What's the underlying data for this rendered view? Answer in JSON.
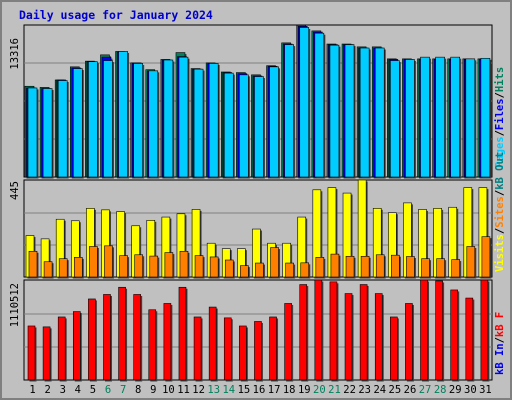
{
  "title": "Daily usage for January 2024",
  "panels": {
    "top": {
      "ymax_label": "13316",
      "legend": [
        {
          "text": "Pages",
          "color": "#00ccff"
        },
        {
          "text": "/",
          "color": "#000000"
        },
        {
          "text": "Files",
          "color": "#0000ee"
        },
        {
          "text": "/",
          "color": "#000000"
        },
        {
          "text": "Hits",
          "color": "#00805c"
        }
      ]
    },
    "middle": {
      "ymax_label": "445",
      "legend": [
        {
          "text": "Visits",
          "color": "#ffff00"
        },
        {
          "text": "/",
          "color": "#000000"
        },
        {
          "text": "Sites",
          "color": "#ff8000"
        },
        {
          "text": "/",
          "color": "#000000"
        },
        {
          "text": "kB Out",
          "color": "#008080"
        }
      ]
    },
    "bottom": {
      "ymax_label": "1110512",
      "legend": [
        {
          "text": "kB In",
          "color": "#0000ee"
        },
        {
          "text": "/",
          "color": "#000000"
        },
        {
          "text": "kB F",
          "color": "#ff0000"
        }
      ]
    }
  },
  "colors": {
    "hits": "#00805c",
    "files": "#0000ee",
    "pages": "#00ccff",
    "visits": "#ffff00",
    "sites": "#ff8000",
    "kbf": "#ff0000",
    "weekday_label": "#000000",
    "weekend_label": "#00805c"
  },
  "chart_data": {
    "type": "bar",
    "title": "Daily usage for January 2024",
    "categories": [
      "1",
      "2",
      "3",
      "4",
      "5",
      "6",
      "7",
      "8",
      "9",
      "10",
      "11",
      "12",
      "13",
      "14",
      "15",
      "16",
      "17",
      "18",
      "19",
      "20",
      "21",
      "22",
      "23",
      "24",
      "25",
      "26",
      "27",
      "28",
      "29",
      "30",
      "31"
    ],
    "weekend_days": [
      "6",
      "7",
      "13",
      "14",
      "20",
      "21",
      "27",
      "28"
    ],
    "panels": [
      {
        "name": "top",
        "ymax": 13316,
        "series": [
          {
            "name": "Hits",
            "values": [
              7950,
              7850,
              8500,
              9650,
              10150,
              10700,
              11000,
              10000,
              9400,
              10300,
              10900,
              9500,
              10000,
              9200,
              9150,
              8950,
              9750,
              11750,
              13300,
              12800,
              11650,
              11650,
              11400,
              11400,
              10350,
              10350,
              10350,
              10350,
              10350,
              10350,
              10350
            ]
          },
          {
            "name": "Files",
            "values": [
              7800,
              7750,
              8500,
              9550,
              10100,
              10500,
              10950,
              10000,
              9300,
              10250,
              10550,
              9450,
              9950,
              9150,
              9050,
              8850,
              9700,
              11650,
              13200,
              12700,
              11600,
              11600,
              11300,
              11300,
              10300,
              10300,
              10300,
              10300,
              10300,
              10300,
              10300
            ]
          },
          {
            "name": "Pages",
            "values": [
              7800,
              7750,
              8450,
              9500,
              10100,
              10200,
              11000,
              9950,
              9300,
              10250,
              10500,
              9450,
              9950,
              9100,
              8950,
              8800,
              9650,
              11600,
              13100,
              12600,
              11550,
              11600,
              11300,
              11300,
              10200,
              10300,
              10500,
              10500,
              10500,
              10350,
              10400
            ]
          }
        ],
        "ylim": [
          0,
          13316
        ]
      },
      {
        "name": "middle",
        "ymax": 445,
        "series": [
          {
            "name": "Visits",
            "values": [
              190,
              175,
              265,
              258,
              315,
              308,
              300,
              235,
              260,
              275,
              290,
              310,
              155,
              130,
              130,
              220,
              155,
              155,
              275,
              400,
              410,
              385,
              445,
              315,
              295,
              340,
              310,
              315,
              320,
              410,
              410
            ]
          },
          {
            "name": "Sites",
            "values": [
              118,
              70,
              84,
              90,
              140,
              143,
              98,
              102,
              96,
              112,
              118,
              98,
              92,
              78,
              52,
              64,
              135,
              64,
              65,
              90,
              105,
              95,
              95,
              102,
              100,
              94,
              84,
              84,
              80,
              140,
              185
            ]
          }
        ],
        "ylim": [
          0,
          445
        ]
      },
      {
        "name": "bottom",
        "ymax": 1110512,
        "series": [
          {
            "name": "kB F",
            "values": [
              600000,
              590000,
              700000,
              760000,
              900000,
              950000,
              1030000,
              950000,
              780000,
              850000,
              1030000,
              700000,
              810000,
              690000,
              600000,
              650000,
              700000,
              850000,
              1060000,
              1110000,
              1090000,
              960000,
              1060000,
              960000,
              700000,
              850000,
              1110000,
              1100000,
              1000000,
              910000,
              1110000
            ]
          }
        ],
        "ylim": [
          0,
          1110512
        ]
      }
    ]
  }
}
